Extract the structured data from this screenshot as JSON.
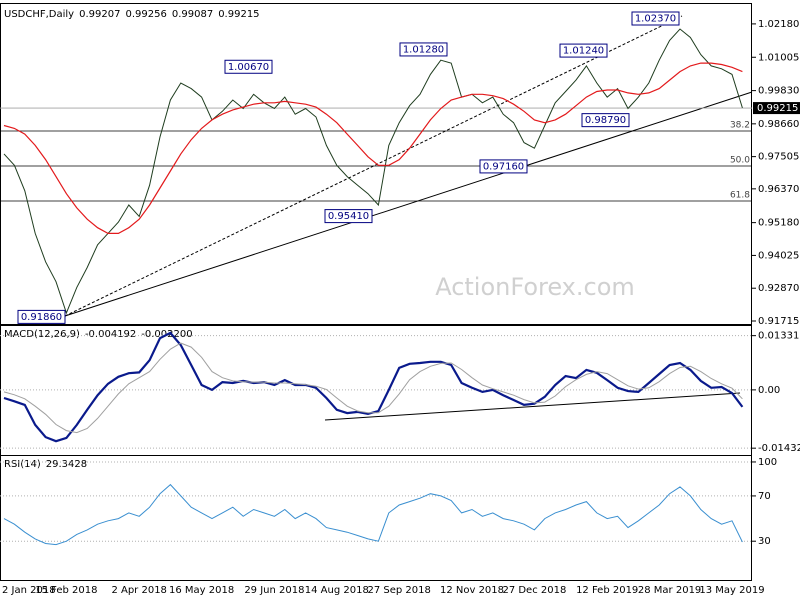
{
  "watermark": "ActionForex.com",
  "chart_data": [
    {
      "type": "line",
      "title": "USDCHF,Daily",
      "readout": [
        0.99207,
        0.99256,
        0.99087,
        0.99215
      ],
      "ylim": [
        0.9168,
        1.0274
      ],
      "yticks": [
        {
          "value": 1.0218,
          "label": "1.02180"
        },
        1.01005,
        {
          "value": 0.9983,
          "label": "0.99830"
        },
        {
          "value": 0.9866,
          "label": "0.98660"
        },
        0.97505,
        {
          "value": 0.9637,
          "label": "0.96370"
        },
        {
          "value": 0.9518,
          "label": "0.95180"
        },
        0.94025,
        {
          "value": 0.9287,
          "label": "0.92870"
        },
        0.91715
      ],
      "grid": false,
      "series": [
        {
          "color": "#1f3d1f",
          "values": [
            0.976,
            0.972,
            0.963,
            0.948,
            0.938,
            0.931,
            0.92,
            0.929,
            0.936,
            0.944,
            0.948,
            0.952,
            0.958,
            0.954,
            0.965,
            0.982,
            0.995,
            1.001,
            0.999,
            0.996,
            0.988,
            0.991,
            0.995,
            0.992,
            0.997,
            0.994,
            0.992,
            0.996,
            0.99,
            0.992,
            0.989,
            0.979,
            0.972,
            0.968,
            0.965,
            0.962,
            0.958,
            0.979,
            0.987,
            0.993,
            0.997,
            1.004,
            1.009,
            1.008,
            0.996,
            0.997,
            0.994,
            0.996,
            0.99,
            0.987,
            0.98,
            0.978,
            0.986,
            0.994,
            0.998,
            1.002,
            1.007,
            1.001,
            0.996,
            0.999,
            0.992,
            0.996,
            1.001,
            1.009,
            1.016,
            1.02,
            1.017,
            1.011,
            1.007,
            1.006,
            1.004,
            0.9922
          ]
        },
        {
          "color": "#e31a1c",
          "values": [
            0.986,
            0.985,
            0.983,
            0.979,
            0.974,
            0.968,
            0.962,
            0.957,
            0.953,
            0.95,
            0.948,
            0.948,
            0.95,
            0.953,
            0.958,
            0.964,
            0.97,
            0.976,
            0.981,
            0.985,
            0.988,
            0.99,
            0.9915,
            0.9925,
            0.9935,
            0.994,
            0.994,
            0.9945,
            0.994,
            0.9935,
            0.9925,
            0.99,
            0.987,
            0.983,
            0.979,
            0.975,
            0.972,
            0.972,
            0.974,
            0.978,
            0.983,
            0.988,
            0.992,
            0.995,
            0.996,
            0.997,
            0.997,
            0.9965,
            0.9955,
            0.9935,
            0.991,
            0.988,
            0.987,
            0.988,
            0.99,
            0.993,
            0.996,
            0.998,
            0.9985,
            0.9985,
            0.9975,
            0.997,
            0.9975,
            0.999,
            1.002,
            1.005,
            1.007,
            1.008,
            1.008,
            1.0075,
            1.0065,
            1.005
          ]
        }
      ],
      "levels": [
        {
          "value": 0.98407,
          "label": "38.2"
        },
        {
          "value": 0.97175,
          "label": "50.0"
        },
        {
          "value": 0.95942,
          "label": "61.8"
        }
      ],
      "last": 0.99215,
      "annotations": [
        {
          "value": 0.9186,
          "label": "0.91860"
        },
        {
          "value": 1.0067,
          "label": "1.00670"
        },
        {
          "value": 1.0128,
          "label": "1.01280"
        },
        {
          "value": 0.9541,
          "label": "0.95410"
        },
        {
          "value": 0.9716,
          "label": "0.97160"
        },
        {
          "value": 1.0124,
          "label": "1.01240"
        },
        {
          "value": 1.0237,
          "label": "1.02370"
        },
        {
          "value": 0.9879,
          "label": "0.98790"
        }
      ]
    },
    {
      "type": "line",
      "title": "MACD(12,26,9)",
      "readout": [
        -0.004192,
        {
          "value": -0.0022,
          "label": "-0.002200"
        }
      ],
      "ylim": [
        -0.016,
        0.0152
      ],
      "yticks": [
        0.013319,
        {
          "value": 0,
          "label": "0.00"
        },
        -0.014323
      ],
      "grid": true,
      "series": [
        {
          "color": "#0a1a8c",
          "values": [
            -0.002,
            -0.0028,
            -0.0037,
            -0.0086,
            -0.0116,
            -0.0126,
            -0.0118,
            -0.0086,
            -0.0049,
            -0.0013,
            0.0015,
            0.0032,
            0.0041,
            0.0043,
            0.0073,
            0.0127,
            0.014,
            0.011,
            0.0061,
            0.0012,
            0.0,
            0.0019,
            0.0017,
            0.0022,
            0.0017,
            0.0019,
            0.0012,
            0.0024,
            0.0012,
            0.0012,
            0.0005,
            -0.002,
            -0.0049,
            -0.0057,
            -0.0054,
            -0.0059,
            -0.0052,
            0.0,
            0.0054,
            0.0064,
            0.0066,
            0.0069,
            0.0069,
            0.0061,
            0.0017,
            0.0005,
            -0.0005,
            0.0,
            -0.0013,
            -0.0025,
            -0.0037,
            -0.0034,
            -0.0017,
            0.0012,
            0.0034,
            0.0029,
            0.0049,
            0.0042,
            0.0024,
            0.0005,
            -0.0003,
            -0.0005,
            0.0017,
            0.0039,
            0.0061,
            0.0066,
            0.0049,
            0.0022,
            0.0005,
            0.0007,
            -0.0008,
            -0.004192
          ]
        },
        {
          "color": "#a0a0a0",
          "values": [
            -0.0005,
            -0.0012,
            -0.0022,
            -0.004,
            -0.006,
            -0.0085,
            -0.01,
            -0.0105,
            -0.0095,
            -0.007,
            -0.004,
            -0.001,
            0.0015,
            0.003,
            0.0045,
            0.0075,
            0.01,
            0.0115,
            0.0105,
            0.008,
            0.0045,
            0.003,
            0.0022,
            0.002,
            0.0019,
            0.0019,
            0.0017,
            0.0017,
            0.0015,
            0.0013,
            0.0009,
            0.0001,
            -0.002,
            -0.004,
            -0.0052,
            -0.0056,
            -0.0056,
            -0.004,
            -0.001,
            0.0025,
            0.0045,
            0.0058,
            0.0065,
            0.0066,
            0.005,
            0.003,
            0.0012,
            0.0003,
            -0.0005,
            -0.0013,
            -0.0024,
            -0.0032,
            -0.003,
            -0.0015,
            0.0008,
            0.0025,
            0.0038,
            0.0045,
            0.004,
            0.0025,
            0.001,
            0.0002,
            0.0005,
            0.002,
            0.004,
            0.0055,
            0.0058,
            0.0045,
            0.0028,
            0.0015,
            0.0004,
            -0.0022
          ]
        }
      ]
    },
    {
      "type": "line",
      "title": "RSI(14)",
      "readout": [
        29.3428
      ],
      "ylim": [
        -2.5,
        103.5
      ],
      "yticks": [
        100,
        70,
        30
      ],
      "grid": true,
      "categories": [
        "2 Jan 2018",
        null,
        null,
        null,
        null,
        null,
        "15 Feb 2018",
        null,
        null,
        null,
        null,
        null,
        null,
        "2 Apr 2018",
        null,
        null,
        null,
        null,
        null,
        "16 May 2018",
        null,
        null,
        null,
        null,
        null,
        null,
        "29 Jun 2018",
        null,
        null,
        null,
        null,
        null,
        "14 Aug 2018",
        null,
        null,
        null,
        null,
        null,
        "27 Sep 2018",
        null,
        null,
        null,
        null,
        null,
        null,
        "12 Nov 2018",
        null,
        null,
        null,
        null,
        null,
        "27 Dec 2018",
        null,
        null,
        null,
        null,
        null,
        null,
        "12 Feb 2019",
        null,
        null,
        null,
        null,
        null,
        "28 Mar 2019",
        null,
        null,
        null,
        null,
        null,
        "13 May 2019",
        null
      ],
      "series": [
        {
          "color": "#3a8fd0",
          "values": [
            50,
            45,
            38,
            32,
            28,
            27,
            30,
            36,
            40,
            45,
            48,
            50,
            55,
            52,
            60,
            72,
            80,
            70,
            60,
            55,
            50,
            55,
            60,
            52,
            58,
            55,
            52,
            58,
            50,
            55,
            50,
            42,
            40,
            38,
            35,
            32,
            30,
            55,
            62,
            65,
            68,
            72,
            70,
            66,
            55,
            58,
            52,
            55,
            50,
            48,
            45,
            40,
            50,
            55,
            58,
            62,
            65,
            55,
            50,
            52,
            42,
            48,
            55,
            62,
            72,
            78,
            70,
            58,
            50,
            45,
            48,
            29.3428
          ]
        }
      ]
    }
  ]
}
